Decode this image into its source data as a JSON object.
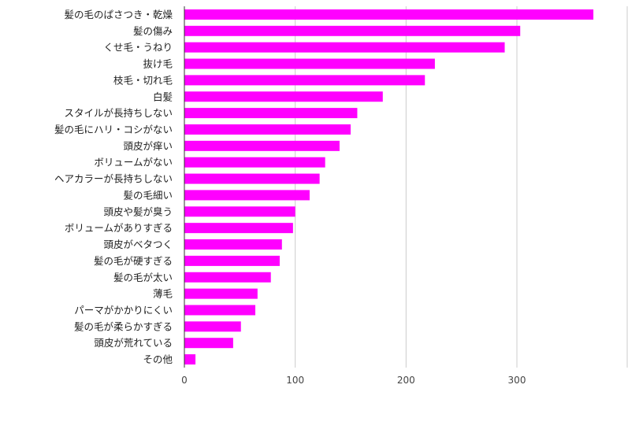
{
  "chart_data": {
    "type": "bar",
    "orientation": "horizontal",
    "title": "",
    "xlabel": "",
    "ylabel": "",
    "xlim": [
      0,
      400
    ],
    "xticks": [
      0,
      100,
      200,
      300
    ],
    "grid": true,
    "bar_color": "#ff00ff",
    "categories": [
      "髪の毛のぱさつき・乾燥",
      "髪の傷み",
      "くせ毛・うねり",
      "抜け毛",
      "枝毛・切れ毛",
      "白髪",
      "スタイルが長持ちしない",
      "髪の毛にハリ・コシがない",
      "頭皮が痒い",
      "ボリュームがない",
      "ヘアカラーが長持ちしない",
      "髪の毛細い",
      "頭皮や髪が臭う",
      "ボリュームがありすぎる",
      "頭皮がベタつく",
      "髪の毛が硬すぎる",
      "髪の毛が太い",
      "薄毛",
      "パーマがかかりにくい",
      "髪の毛が柔らかすぎる",
      "頭皮が荒れている",
      "その他"
    ],
    "values": [
      369,
      303,
      289,
      226,
      217,
      179,
      156,
      150,
      140,
      127,
      122,
      113,
      100,
      98,
      88,
      86,
      78,
      66,
      64,
      51,
      44,
      10
    ]
  }
}
